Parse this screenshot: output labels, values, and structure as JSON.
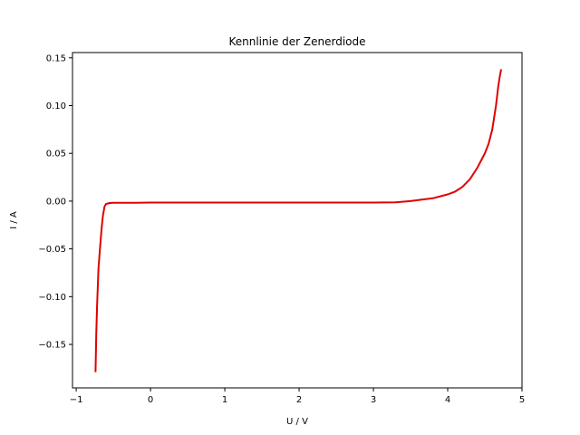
{
  "chart_data": {
    "type": "line",
    "title": "Kennlinie der Zenerdiode",
    "xlabel": "U / V",
    "ylabel": "I / A",
    "xlim": [
      -1.05,
      5.0
    ],
    "ylim": [
      -0.1955,
      0.1555
    ],
    "xticks": [
      -1,
      0,
      1,
      2,
      3,
      4,
      5
    ],
    "xtick_labels": [
      "−1",
      "0",
      "1",
      "2",
      "3",
      "4",
      "5"
    ],
    "yticks": [
      -0.15,
      -0.1,
      -0.05,
      0.0,
      0.05,
      0.1,
      0.15
    ],
    "ytick_labels": [
      "−0.15",
      "−0.10",
      "−0.05",
      "0.00",
      "0.05",
      "0.10",
      "0.15"
    ],
    "grid": false,
    "line_color": "#e00000",
    "series": [
      {
        "x": [
          -0.74,
          -0.735,
          -0.73,
          -0.72,
          -0.71,
          -0.7,
          -0.68,
          -0.66,
          -0.64,
          -0.62,
          -0.6,
          -0.55,
          -0.5,
          -0.4,
          -0.2,
          0.0,
          0.5,
          1.0,
          1.5,
          2.0,
          2.5,
          3.0,
          3.3,
          3.5,
          3.7,
          3.8,
          3.9,
          4.0,
          4.1,
          4.2,
          4.3,
          4.4,
          4.5,
          4.55,
          4.6,
          4.65,
          4.68,
          4.7,
          4.72
        ],
        "y": [
          -0.179,
          -0.16,
          -0.14,
          -0.11,
          -0.09,
          -0.07,
          -0.05,
          -0.03,
          -0.015,
          -0.006,
          -0.003,
          -0.002,
          -0.0017,
          -0.0017,
          -0.0017,
          -0.0015,
          -0.0015,
          -0.0015,
          -0.0015,
          -0.0015,
          -0.0015,
          -0.0015,
          -0.0012,
          0.0,
          0.002,
          0.003,
          0.005,
          0.007,
          0.01,
          0.015,
          0.023,
          0.035,
          0.05,
          0.06,
          0.075,
          0.1,
          0.12,
          0.13,
          0.138
        ]
      }
    ]
  }
}
